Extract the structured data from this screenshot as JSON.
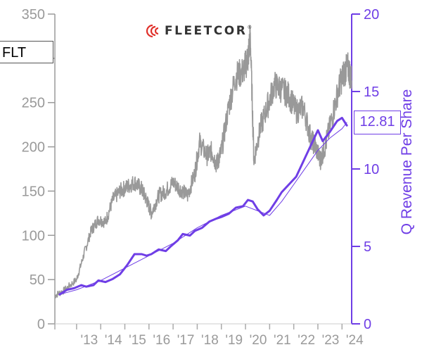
{
  "ticker": "FLT",
  "logo": {
    "text": "FLEETCOR",
    "mark": "®"
  },
  "colors": {
    "price": "#999999",
    "revenue": "#6f3ee6",
    "trend": "#6f3ee6",
    "axis_left": "#9a9a9a",
    "axis_right": "#6f3ee6"
  },
  "chart_data": {
    "type": "line",
    "title": "",
    "xlabel": "",
    "ylabel": "",
    "y2label": "Q Revenue Per Share",
    "x_ticks": [
      "'13",
      "'14",
      "'15",
      "'16",
      "'17",
      "'18",
      "'19",
      "'20",
      "'21",
      "'22",
      "'23",
      "'24"
    ],
    "x_range": [
      2012.1,
      2024.4
    ],
    "y_left": {
      "ticks": [
        "0",
        "50",
        "100",
        "150",
        "200",
        "250",
        "300",
        "350"
      ],
      "range": [
        0,
        350
      ]
    },
    "y_right": {
      "ticks": [
        "0",
        "5",
        "10",
        "15",
        "20"
      ],
      "range": [
        0,
        20
      ]
    },
    "last_value_label": "12.81",
    "series": [
      {
        "name": "",
        "axis": "left",
        "style": "gray-noisy",
        "x": [
          2012.1,
          2012.5,
          2013.0,
          2013.3,
          2013.6,
          2013.9,
          2014.2,
          2014.5,
          2014.8,
          2015.1,
          2015.4,
          2015.7,
          2015.9,
          2016.1,
          2016.4,
          2016.7,
          2017.0,
          2017.3,
          2017.6,
          2017.9,
          2018.1,
          2018.4,
          2018.6,
          2018.8,
          2019.0,
          2019.3,
          2019.6,
          2019.9,
          2020.1,
          2020.2,
          2020.35,
          2020.6,
          2020.9,
          2021.2,
          2021.5,
          2021.8,
          2022.1,
          2022.4,
          2022.7,
          2022.9,
          2023.1,
          2023.3,
          2023.6,
          2023.9,
          2024.1,
          2024.25,
          2024.4
        ],
        "y": [
          32,
          38,
          50,
          78,
          105,
          118,
          115,
          140,
          150,
          155,
          160,
          152,
          140,
          125,
          145,
          150,
          160,
          152,
          145,
          170,
          205,
          190,
          195,
          180,
          195,
          245,
          280,
          285,
          300,
          325,
          185,
          220,
          245,
          270,
          265,
          258,
          240,
          245,
          210,
          200,
          185,
          200,
          235,
          270,
          285,
          290,
          275
        ]
      },
      {
        "name": "",
        "axis": "right",
        "style": "purple-thick",
        "x": [
          2012.3,
          2012.6,
          2012.9,
          2013.2,
          2013.4,
          2013.7,
          2013.9,
          2014.2,
          2014.5,
          2014.8,
          2015.1,
          2015.4,
          2015.7,
          2015.9,
          2016.1,
          2016.4,
          2016.7,
          2016.9,
          2017.2,
          2017.4,
          2017.7,
          2017.9,
          2018.2,
          2018.5,
          2018.8,
          2019.0,
          2019.3,
          2019.6,
          2019.9,
          2020.1,
          2020.3,
          2020.5,
          2020.75,
          2021.0,
          2021.3,
          2021.5,
          2021.8,
          2022.1,
          2022.4,
          2022.7,
          2023.0,
          2023.2,
          2023.5,
          2023.8,
          2024.0,
          2024.2
        ],
        "y": [
          1.9,
          2.2,
          2.3,
          2.5,
          2.4,
          2.5,
          2.8,
          2.7,
          2.9,
          3.2,
          3.8,
          4.5,
          4.5,
          4.4,
          4.5,
          4.8,
          4.7,
          5.0,
          5.4,
          5.8,
          5.7,
          6.0,
          6.2,
          6.6,
          6.8,
          6.9,
          7.1,
          7.5,
          7.6,
          8.0,
          7.9,
          7.4,
          7.0,
          7.3,
          8.0,
          8.5,
          9.0,
          9.5,
          10.5,
          11.5,
          12.5,
          11.8,
          12.4,
          13.1,
          13.3,
          12.81
        ]
      },
      {
        "name": "",
        "axis": "right",
        "style": "purple-thin-trend",
        "x": [
          2012.3,
          2013.0,
          2014.0,
          2015.0,
          2016.0,
          2017.0,
          2018.0,
          2019.0,
          2020.0,
          2020.5,
          2021.0,
          2021.5,
          2022.0,
          2022.5,
          2023.0,
          2023.5,
          2024.0,
          2024.2
        ],
        "y": [
          1.9,
          2.2,
          2.8,
          3.6,
          4.4,
          5.2,
          6.2,
          7.0,
          7.6,
          7.3,
          7.0,
          7.9,
          9.0,
          10.1,
          11.2,
          12.0,
          12.6,
          13.0
        ]
      }
    ]
  }
}
